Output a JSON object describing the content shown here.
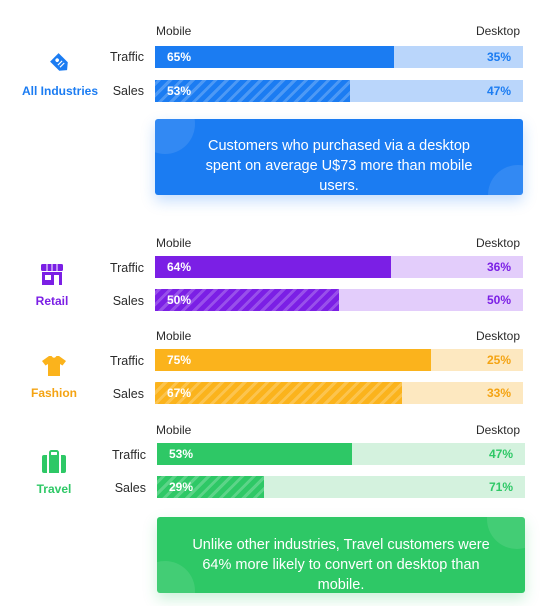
{
  "chart_data": [
    {
      "type": "bar",
      "stacked": true,
      "orientation": "horizontal",
      "industry": "All Industries",
      "header_left": "Mobile",
      "header_right": "Desktop",
      "categories": [
        "Traffic",
        "Sales"
      ],
      "series": [
        {
          "name": "Mobile",
          "values": [
            65,
            53
          ]
        },
        {
          "name": "Desktop",
          "values": [
            35,
            47
          ]
        }
      ],
      "labels": [
        [
          "65%",
          "35%"
        ],
        [
          "53%",
          "47%"
        ]
      ],
      "colors": {
        "main": "#1b7cf2",
        "light": "#bad6fb",
        "text": "#1b7cf2"
      },
      "icon": "tag-icon"
    },
    {
      "type": "bar",
      "stacked": true,
      "orientation": "horizontal",
      "industry": "Retail",
      "header_left": "Mobile",
      "header_right": "Desktop",
      "categories": [
        "Traffic",
        "Sales"
      ],
      "series": [
        {
          "name": "Mobile",
          "values": [
            64,
            50
          ]
        },
        {
          "name": "Desktop",
          "values": [
            36,
            50
          ]
        }
      ],
      "labels": [
        [
          "64%",
          "36%"
        ],
        [
          "50%",
          "50%"
        ]
      ],
      "colors": {
        "main": "#7b1fe5",
        "light": "#e3cdfb",
        "text": "#7b1fe5"
      },
      "icon": "storefront-icon"
    },
    {
      "type": "bar",
      "stacked": true,
      "orientation": "horizontal",
      "industry": "Fashion",
      "header_left": "Mobile",
      "header_right": "Desktop",
      "categories": [
        "Traffic",
        "Sales"
      ],
      "series": [
        {
          "name": "Mobile",
          "values": [
            75,
            67
          ]
        },
        {
          "name": "Desktop",
          "values": [
            25,
            33
          ]
        }
      ],
      "labels": [
        [
          "75%",
          "25%"
        ],
        [
          "67%",
          "33%"
        ]
      ],
      "colors": {
        "main": "#fbb31c",
        "light": "#fde8c0",
        "text": "#f4a312"
      },
      "icon": "tshirt-icon"
    },
    {
      "type": "bar",
      "stacked": true,
      "orientation": "horizontal",
      "industry": "Travel",
      "header_left": "Mobile",
      "header_right": "Desktop",
      "categories": [
        "Traffic",
        "Sales"
      ],
      "series": [
        {
          "name": "Mobile",
          "values": [
            53,
            29
          ]
        },
        {
          "name": "Desktop",
          "values": [
            47,
            71
          ]
        }
      ],
      "labels": [
        [
          "53%",
          "47%"
        ],
        [
          "29%",
          "71%"
        ]
      ],
      "colors": {
        "main": "#2ec866",
        "light": "#d4f2de",
        "text": "#2ec866"
      },
      "icon": "suitcase-icon"
    }
  ],
  "callouts": [
    {
      "text": "Customers who purchased via a desktop spent on average U$73 more than mobile users.",
      "color": "#1b7cf2"
    },
    {
      "text": "Unlike other industries, Travel customers were 64% more likely to convert on desktop than mobile.",
      "color": "#2ec866"
    }
  ]
}
